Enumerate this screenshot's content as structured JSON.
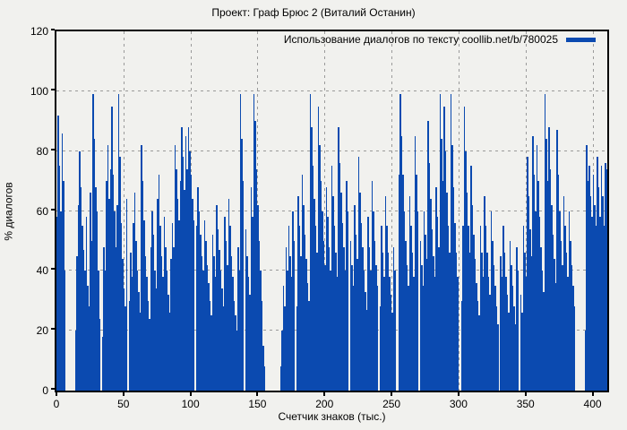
{
  "chart_data": {
    "type": "bar",
    "title": "Проект: Граф Брюс 2 (Виталий Останин)",
    "xlabel": "Счетчик знаков (тыс.)",
    "ylabel": "% диалогов",
    "legend_position": "top-right",
    "grid": true,
    "xlim": [
      0,
      411
    ],
    "ylim": [
      0,
      120
    ],
    "x_ticks": [
      0,
      50,
      100,
      150,
      200,
      250,
      300,
      350,
      400
    ],
    "y_ticks": [
      0,
      20,
      40,
      60,
      80,
      100,
      120
    ],
    "colors": {
      "background": "#f1f1ee",
      "grid": "#9a9a9a",
      "axis": "#000000",
      "bar": "#0b4ab0"
    },
    "series": [
      {
        "name": "Использование диалогов по тексту coollib.net/b/780025",
        "color": "#0b4ab0",
        "x_start": 0,
        "x_step": 1,
        "values": [
          58,
          92,
          75,
          60,
          86,
          70,
          40,
          0,
          0,
          0,
          0,
          0,
          0,
          0,
          20,
          45,
          62,
          80,
          68,
          55,
          47,
          40,
          58,
          35,
          28,
          66,
          50,
          99,
          84,
          68,
          60,
          40,
          24,
          0,
          18,
          48,
          40,
          70,
          82,
          64,
          74,
          95,
          72,
          60,
          48,
          62,
          99,
          78,
          56,
          44,
          34,
          28,
          64,
          0,
          30,
          46,
          38,
          56,
          66,
          50,
          40,
          33,
          26,
          82,
          70,
          57,
          45,
          38,
          30,
          24,
          48,
          60,
          52,
          40,
          34,
          64,
          72,
          55,
          45,
          38,
          58,
          48,
          40,
          32,
          26,
          44,
          56,
          48,
          82,
          74,
          64,
          57,
          70,
          88,
          78,
          67,
          85,
          74,
          88,
          80,
          72,
          64,
          57,
          0,
          55,
          68,
          60,
          52,
          45,
          40,
          57,
          50,
          42,
          36,
          30,
          25,
          52,
          45,
          38,
          62,
          54,
          47,
          40,
          34,
          28,
          58,
          50,
          42,
          64,
          55,
          45,
          38,
          30,
          25,
          20,
          48,
          40,
          99,
          84,
          70,
          0,
          54,
          45,
          38,
          32,
          68,
          58,
          99,
          90,
          74,
          62,
          50,
          40,
          30,
          15,
          8,
          0,
          0,
          0,
          0,
          0,
          0,
          0,
          0,
          0,
          0,
          0,
          8,
          20,
          35,
          28,
          48,
          40,
          55,
          45,
          38,
          60,
          50,
          0,
          28,
          65,
          55,
          45,
          72,
          62,
          52,
          44,
          36,
          30,
          99,
          88,
          75,
          64,
          55,
          46,
          95,
          82,
          70,
          60,
          50,
          42,
          68,
          58,
          48,
          40,
          75,
          65,
          55,
          46,
          38,
          88,
          76,
          66,
          56,
          48,
          40,
          70,
          60,
          0,
          50,
          42,
          35,
          62,
          52,
          44,
          78,
          66,
          56,
          48,
          40,
          33,
          27,
          58,
          48,
          40,
          70,
          60,
          50,
          42,
          35,
          0,
          28,
          55,
          46,
          38,
          65,
          55,
          46,
          38,
          32,
          26,
          48,
          40,
          0,
          0,
          72,
          99,
          85,
          72,
          60,
          50,
          42,
          35,
          65,
          55,
          46,
          38,
          85,
          72,
          60,
          0,
          50,
          42,
          35,
          60,
          52,
          44,
          90,
          76,
          64,
          54,
          45,
          38,
          68,
          58,
          48,
          99,
          84,
          70,
          95,
          80,
          66,
          55,
          46,
          99,
          82,
          68,
          56,
          46,
          38,
          0,
          0,
          30,
          55,
          95,
          80,
          66,
          55,
          46,
          75,
          62,
          52,
          44,
          36,
          30,
          25,
          55,
          46,
          38,
          65,
          55,
          46,
          38,
          32,
          60,
          50,
          42,
          35,
          28,
          22,
          0,
          45,
          38,
          55,
          46,
          38,
          32,
          26,
          50,
          42,
          35,
          28,
          22,
          48,
          40,
          0,
          32,
          26,
          55,
          46,
          38,
          78,
          65,
          54,
          45,
          85,
          72,
          60,
          82,
          70,
          58,
          48,
          40,
          33,
          99,
          84,
          70,
          88,
          74,
          62,
          52,
          44,
          36,
          87,
          72,
          60,
          50,
          42,
          65,
          55,
          46,
          38,
          60,
          50,
          42,
          35,
          28,
          0,
          0,
          0,
          0,
          0,
          0,
          0,
          20,
          82,
          70,
          75,
          65,
          58,
          72,
          62,
          55,
          78,
          68,
          58,
          75,
          65,
          55,
          76,
          74
        ]
      }
    ]
  }
}
